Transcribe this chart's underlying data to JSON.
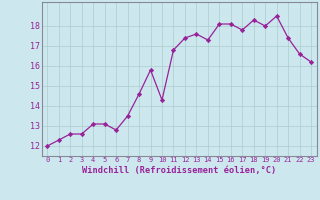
{
  "x": [
    0,
    1,
    2,
    3,
    4,
    5,
    6,
    7,
    8,
    9,
    10,
    11,
    12,
    13,
    14,
    15,
    16,
    17,
    18,
    19,
    20,
    21,
    22,
    23
  ],
  "y": [
    12.0,
    12.3,
    12.6,
    12.6,
    13.1,
    13.1,
    12.8,
    13.5,
    14.6,
    15.8,
    14.3,
    16.8,
    17.4,
    17.6,
    17.3,
    18.1,
    18.1,
    17.8,
    18.3,
    18.0,
    18.5,
    17.4,
    16.6,
    16.2
  ],
  "line_color": "#992299",
  "marker": "D",
  "marker_size": 2.2,
  "bg_color": "#cce8ee",
  "grid_color": "#aacccc",
  "xlabel": "Windchill (Refroidissement éolien,°C)",
  "ylim": [
    11.5,
    19.2
  ],
  "xlim": [
    -0.5,
    23.5
  ],
  "yticks": [
    12,
    13,
    14,
    15,
    16,
    17,
    18
  ],
  "xticks": [
    0,
    1,
    2,
    3,
    4,
    5,
    6,
    7,
    8,
    9,
    10,
    11,
    12,
    13,
    14,
    15,
    16,
    17,
    18,
    19,
    20,
    21,
    22,
    23
  ],
  "tick_color": "#992299",
  "label_color": "#992299",
  "spine_color": "#888899",
  "font_family": "monospace",
  "xtick_fontsize": 5.0,
  "ytick_fontsize": 6.0,
  "xlabel_fontsize": 6.2
}
